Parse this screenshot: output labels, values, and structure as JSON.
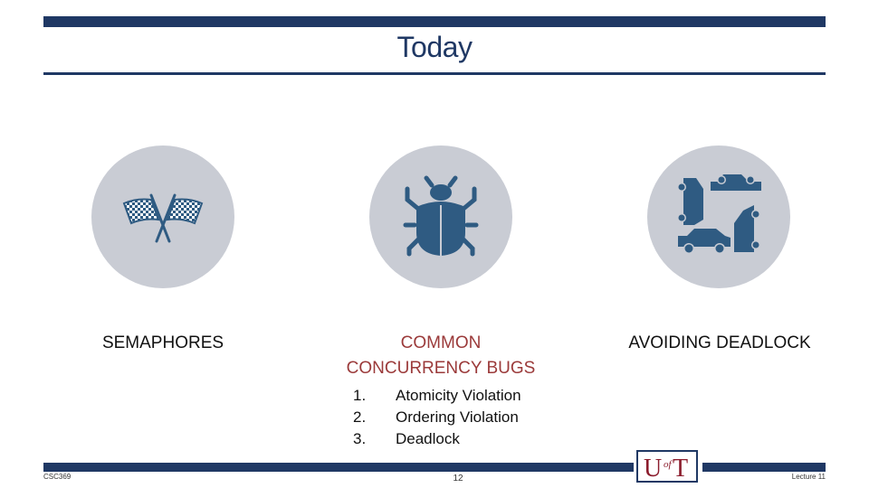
{
  "slide": {
    "title": "Today",
    "page_number": "12",
    "footer_left": "CSC369",
    "footer_right": "Lecture 11"
  },
  "topics": [
    {
      "label": "SEMAPHORES",
      "icon": "checkered-flags-icon"
    },
    {
      "label_lines": [
        "COMMON",
        "CONCURRENCY BUGS"
      ],
      "icon": "bug-icon"
    },
    {
      "label": "AVOIDING DEADLOCK",
      "icon": "cars-gridlock-icon"
    }
  ],
  "bug_list": [
    {
      "num": "1.",
      "text": "Atomicity Violation"
    },
    {
      "num": "2.",
      "text": "Ordering Violation"
    },
    {
      "num": "3.",
      "text": "Deadlock"
    }
  ],
  "logo": {
    "letters": "U",
    "small": "of",
    "letters2": "T"
  },
  "colors": {
    "navy": "#1f3864",
    "red_accent": "#9b3a3a",
    "circle_gray": "#c9ccd4",
    "icon_blue": "#2f5b82",
    "logo_red": "#8b1c2c"
  }
}
